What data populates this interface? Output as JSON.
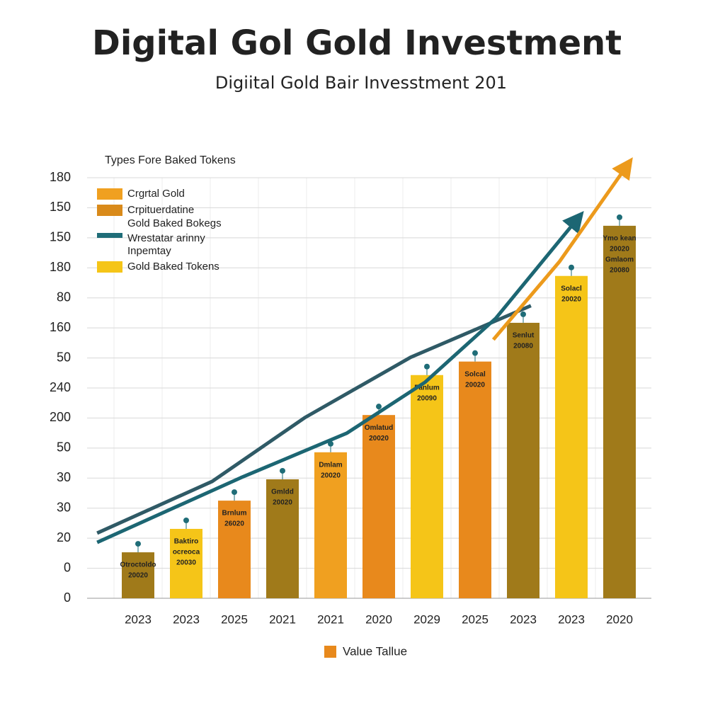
{
  "chart_data": {
    "type": "bar",
    "title": "Digital Gol Gold Investment",
    "subtitle": "Digiital Gold Bair Invesstment 201",
    "legend_title": "Types Fore Baked Tokens",
    "legend": [
      {
        "label": "Crgrtal Gold",
        "color": "#f0a020"
      },
      {
        "label": "Crpituerdatine",
        "color": "#d98a1a"
      },
      {
        "label": "Gold Baked Bokegs"
      },
      {
        "label": "Wrestatar arinny",
        "color": "#1f6d78"
      },
      {
        "label": "Inpemtay"
      },
      {
        "label": "Gold Baked Tokens",
        "color": "#f5c518"
      }
    ],
    "categories": [
      "2023",
      "2023",
      "2025",
      "2021",
      "2021",
      "2020",
      "2029",
      "2025",
      "2023",
      "2023",
      "2020"
    ],
    "values": [
      1.53,
      2.31,
      3.25,
      3.96,
      4.86,
      6.1,
      7.43,
      7.88,
      9.17,
      10.73,
      12.4
    ],
    "colors": [
      "#a07a1a",
      "#f5c518",
      "#e8891c",
      "#a07a1a",
      "#f0a020",
      "#e8891c",
      "#f5c518",
      "#e8891c",
      "#a07a1a",
      "#f5c518",
      "#a07a1a"
    ],
    "bar_labels": [
      [
        "Otroctoldo",
        "20020"
      ],
      [
        "Baktiro",
        "ocreoca",
        "20030"
      ],
      [
        "Brnlum",
        "26020"
      ],
      [
        "Gmldd",
        "20020"
      ],
      [
        "Dmlam",
        "20020"
      ],
      [
        "Omlatud",
        "20020"
      ],
      [
        "Fanlum",
        "20090"
      ],
      [
        "Solcal",
        "20020"
      ],
      [
        "Senlut",
        "20080"
      ],
      [
        "Solacl",
        "20020"
      ],
      [
        "Ymo kean",
        "20020",
        "Gmlaom",
        "20080"
      ]
    ],
    "ylim": [
      0,
      14
    ],
    "yticks": [
      {
        "value": 0,
        "label": "0"
      },
      {
        "value": 1,
        "label": "0"
      },
      {
        "value": 2,
        "label": "20"
      },
      {
        "value": 3,
        "label": "30"
      },
      {
        "value": 4,
        "label": "30"
      },
      {
        "value": 5,
        "label": "50"
      },
      {
        "value": 6,
        "label": "200"
      },
      {
        "value": 7,
        "label": "240"
      },
      {
        "value": 8,
        "label": "50"
      },
      {
        "value": 9,
        "label": "160"
      },
      {
        "value": 10,
        "label": "80"
      },
      {
        "value": 11,
        "label": "180"
      },
      {
        "value": 12,
        "label": "150"
      },
      {
        "value": 13,
        "label": "150"
      },
      {
        "value": 14,
        "label": "180"
      }
    ],
    "grid": true,
    "lines": [
      {
        "color": "#2f5a66",
        "x": [
          -0.85,
          1.54,
          3.46,
          5.66,
          7.13,
          8.16
        ],
        "values": [
          2.17,
          3.89,
          6.01,
          8.02,
          9.03,
          9.74
        ]
      },
      {
        "color": "#1c6673",
        "arrow": true,
        "x": [
          -0.85,
          2.13,
          4.34,
          5.96,
          7.43,
          9.12
        ],
        "values": [
          1.86,
          4.01,
          5.5,
          7.19,
          9.32,
          12.62
        ]
      },
      {
        "color": "#ec9a1c",
        "arrow": true,
        "x": [
          7.38,
          8.75,
          10.15
        ],
        "values": [
          8.61,
          11.2,
          14.39
        ]
      }
    ],
    "bottom_legend": {
      "label": "Value Tallue",
      "color": "#e8891c"
    }
  }
}
